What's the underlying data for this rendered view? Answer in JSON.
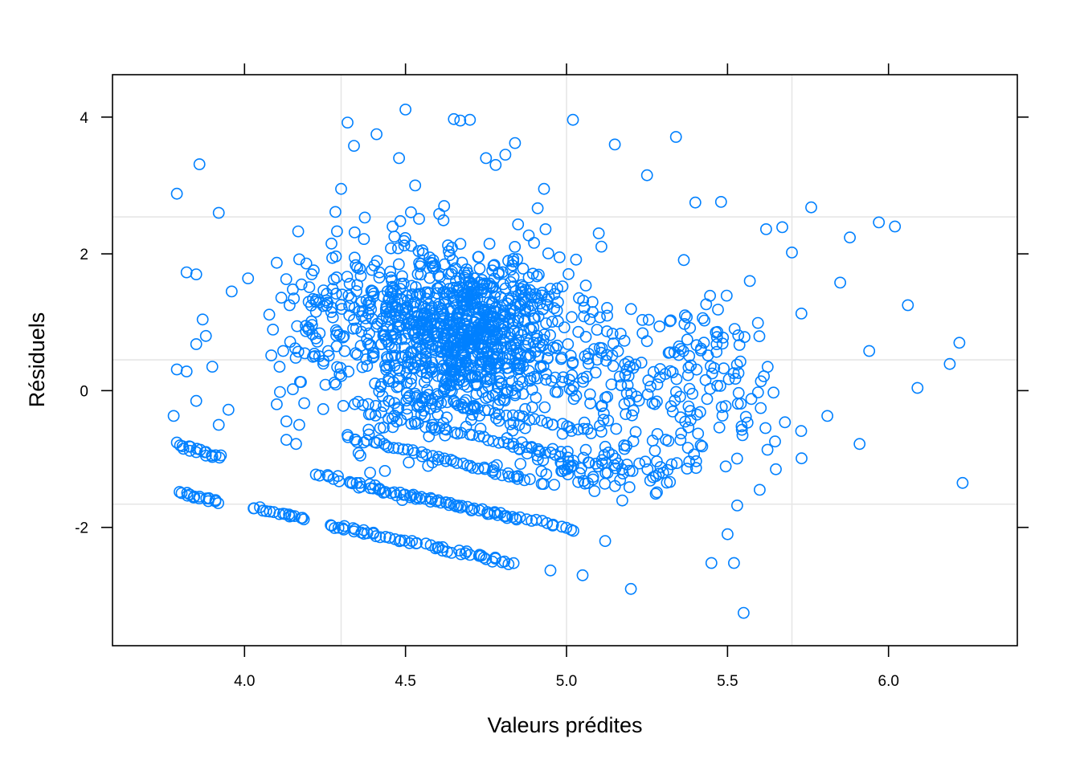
{
  "chart_data": {
    "type": "scatter",
    "xlabel": "Valeurs prédites",
    "ylabel": "Résiduels",
    "xlim": [
      3.59,
      6.4
    ],
    "ylim": [
      -3.73,
      4.62
    ],
    "x_ticks": [
      {
        "value": 4.0,
        "label": "4.0"
      },
      {
        "value": 4.5,
        "label": "4.5"
      },
      {
        "value": 5.0,
        "label": "5.0"
      },
      {
        "value": 5.5,
        "label": "5.5"
      },
      {
        "value": 6.0,
        "label": "6.0"
      }
    ],
    "y_ticks": [
      {
        "value": -2,
        "label": "-2"
      },
      {
        "value": 0,
        "label": "0"
      },
      {
        "value": 2,
        "label": "2"
      },
      {
        "value": 4,
        "label": "4"
      }
    ],
    "grid": {
      "x": [
        4.3,
        5.0,
        5.7
      ],
      "y": [
        -1.66,
        0.45,
        2.54
      ]
    },
    "colors": {
      "points": "#0080ff",
      "grid": "#e6e6e6",
      "axis": "#000000"
    },
    "series": [
      {
        "x": [
          3.79,
          3.86,
          3.92,
          3.96,
          3.79,
          3.82,
          3.85,
          3.88,
          3.87,
          3.85,
          3.82,
          3.78,
          3.8,
          3.81,
          3.83,
          3.85,
          3.88,
          3.9,
          3.92,
          3.91,
          3.83,
          3.86,
          3.89,
          3.9,
          3.85,
          3.95,
          4.1,
          4.12,
          4.14,
          4.15,
          4.17,
          4.13,
          4.16,
          4.12,
          4.14,
          4.18,
          4.1,
          4.15,
          4.13,
          4.11,
          4.17,
          4.32,
          4.34,
          4.41,
          4.3,
          4.27,
          4.35,
          4.38,
          4.36,
          4.39,
          4.33,
          4.29,
          4.31,
          4.28,
          4.37,
          4.34,
          4.32,
          4.4,
          4.5,
          4.48,
          4.53,
          4.46,
          4.55,
          4.51,
          4.57,
          4.49,
          4.52,
          4.65,
          4.67,
          4.7,
          4.62,
          4.75,
          4.78,
          4.81,
          4.84,
          4.6,
          4.69,
          4.73,
          4.77,
          5.02,
          4.93,
          5.1,
          5.15,
          5.25,
          5.34,
          5.4,
          5.48,
          5.5,
          5.2,
          5.05,
          4.95,
          5.12,
          5.3,
          5.45,
          5.62,
          5.67,
          5.7,
          5.76,
          5.85,
          5.88,
          5.97,
          6.02,
          6.06,
          6.09,
          6.19,
          6.22,
          6.23,
          5.94,
          5.91,
          5.81,
          5.73,
          5.65,
          5.6,
          5.55,
          5.52,
          5.53
        ],
        "y": [
          2.88,
          3.31,
          2.6,
          1.45,
          0.31,
          0.28,
          0.68,
          0.8,
          1.04,
          1.7,
          1.73,
          -0.37,
          -0.8,
          -0.85,
          -0.88,
          -0.9,
          -0.95,
          -0.97,
          -0.5,
          -1.6,
          -1.52,
          -1.55,
          -1.58,
          0.35,
          -0.15,
          -0.28,
          1.87,
          0.58,
          1.25,
          1.48,
          1.92,
          -0.72,
          -0.78,
          -1.8,
          -1.84,
          -1.86,
          -0.2,
          0.02,
          -0.45,
          -0.02,
          -0.5,
          3.92,
          3.58,
          3.75,
          2.95,
          2.15,
          1.8,
          0.75,
          -0.95,
          -1.2,
          -1.35,
          -1.25,
          -1.98,
          -2.01,
          -2.04,
          -2.06,
          -0.65,
          -2.09,
          4.11,
          3.4,
          3.0,
          2.4,
          1.1,
          -1.05,
          -1.1,
          -1.6,
          -2.2,
          3.97,
          3.95,
          3.96,
          2.7,
          3.4,
          3.3,
          3.45,
          3.62,
          -2.3,
          -2.35,
          -2.4,
          -2.5,
          3.96,
          2.95,
          2.3,
          3.6,
          3.15,
          3.71,
          2.75,
          2.76,
          -2.1,
          -2.9,
          -2.7,
          -2.63,
          -2.2,
          -1.2,
          -2.52,
          2.36,
          2.39,
          2.02,
          2.68,
          1.58,
          2.24,
          2.46,
          2.4,
          1.25,
          0.04,
          0.39,
          0.7,
          -1.35,
          0.58,
          -0.78,
          -0.37,
          -0.99,
          -1.15,
          -1.45,
          -3.25,
          -2.52,
          -1.68
        ],
        "bands": [
          {
            "x_start": 3.8,
            "x_end": 3.93,
            "y_start": -0.78,
            "y_end": -0.98,
            "count": 12
          },
          {
            "x_start": 3.79,
            "x_end": 3.92,
            "y_start": -1.49,
            "y_end": -1.63,
            "count": 12
          },
          {
            "x_start": 4.02,
            "x_end": 4.18,
            "y_start": -1.7,
            "y_end": -1.87,
            "count": 14
          },
          {
            "x_start": 4.22,
            "x_end": 4.85,
            "y_start": -1.22,
            "y_end": -1.88,
            "count": 40
          },
          {
            "x_start": 4.26,
            "x_end": 4.84,
            "y_start": -1.97,
            "y_end": -2.53,
            "count": 44
          },
          {
            "x_start": 4.32,
            "x_end": 4.88,
            "y_start": -0.68,
            "y_end": -1.3,
            "count": 44
          },
          {
            "x_start": 4.35,
            "x_end": 5.03,
            "y_start": -1.4,
            "y_end": -2.03,
            "count": 44
          },
          {
            "x_start": 4.45,
            "x_end": 4.98,
            "y_start": -0.4,
            "y_end": -0.95,
            "count": 36
          },
          {
            "x_start": 4.5,
            "x_end": 5.08,
            "y_start": -0.05,
            "y_end": -0.6,
            "count": 36
          }
        ],
        "clusters": [
          {
            "cx": 4.68,
            "cy": 0.75,
            "sx": 0.13,
            "sy": 0.95,
            "count": 620
          },
          {
            "cx": 4.62,
            "cy": 1.35,
            "sx": 0.22,
            "sy": 1.05,
            "count": 240
          },
          {
            "cx": 5.05,
            "cy": 0.4,
            "sx": 0.25,
            "sy": 1.3,
            "count": 200
          },
          {
            "cx": 4.4,
            "cy": 0.4,
            "sx": 0.12,
            "sy": 1.2,
            "count": 130
          },
          {
            "cx": 5.42,
            "cy": 0.1,
            "sx": 0.13,
            "sy": 1.1,
            "count": 100
          },
          {
            "cx": 4.22,
            "cy": 1.2,
            "sx": 0.06,
            "sy": 0.8,
            "count": 30
          },
          {
            "cx": 5.12,
            "cy": -1.1,
            "sx": 0.14,
            "sy": 0.35,
            "count": 90
          }
        ],
        "seed": 7
      }
    ]
  }
}
